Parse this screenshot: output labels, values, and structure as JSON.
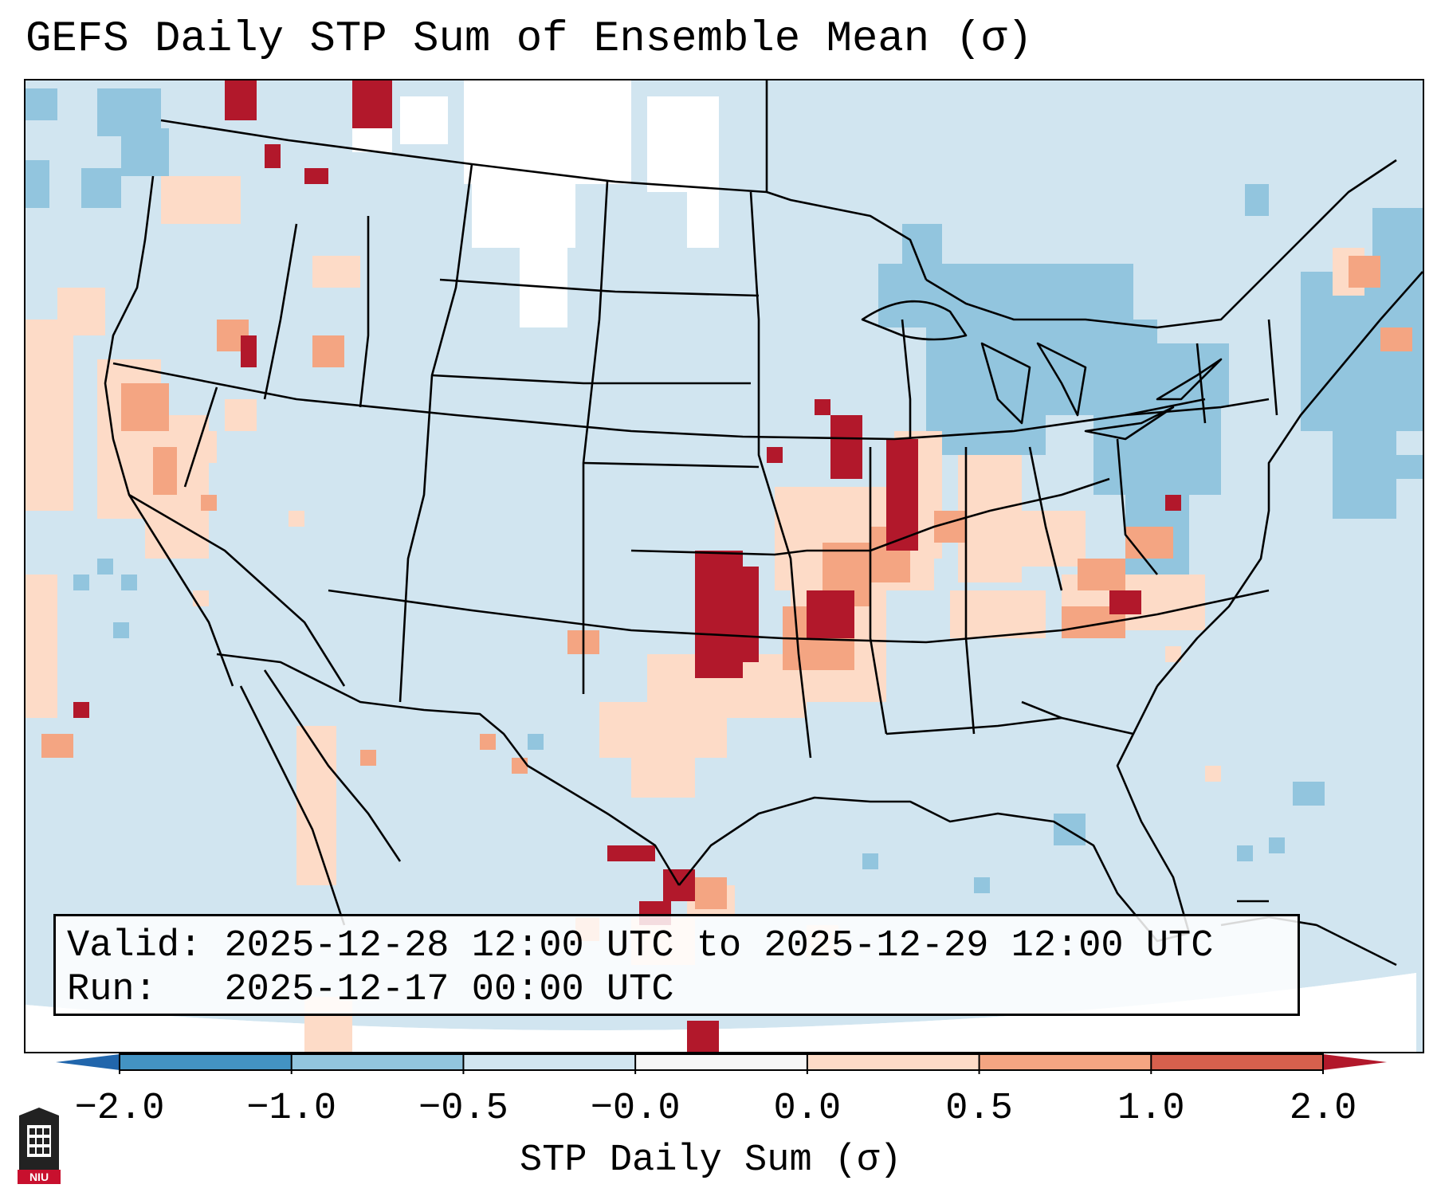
{
  "title": "GEFS Daily STP Sum of Ensemble Mean (σ)",
  "info": {
    "valid_label": "Valid:",
    "valid_value": "2025-12-28 12:00 UTC to 2025-12-29 12:00 UTC",
    "run_label": "Run:",
    "run_value": "2025-12-17 00:00 UTC"
  },
  "colorbar": {
    "label": "STP Daily Sum (σ)",
    "ticks": [
      "−2.0",
      "−1.0",
      "−0.5",
      "−0.0",
      "0.0",
      "0.5",
      "1.0",
      "2.0"
    ],
    "bin_colors": [
      "#4393c3",
      "#92c5de",
      "#d1e5f0",
      "#f7f7f7",
      "#fddbc7",
      "#f4a582",
      "#d6604d"
    ],
    "under_color": "#2166ac",
    "over_color": "#b2182b",
    "extend": "both"
  },
  "logo": {
    "text": "NIU"
  },
  "colors": {
    "background_field": "#d1e5f0",
    "outline": "#000000"
  }
}
